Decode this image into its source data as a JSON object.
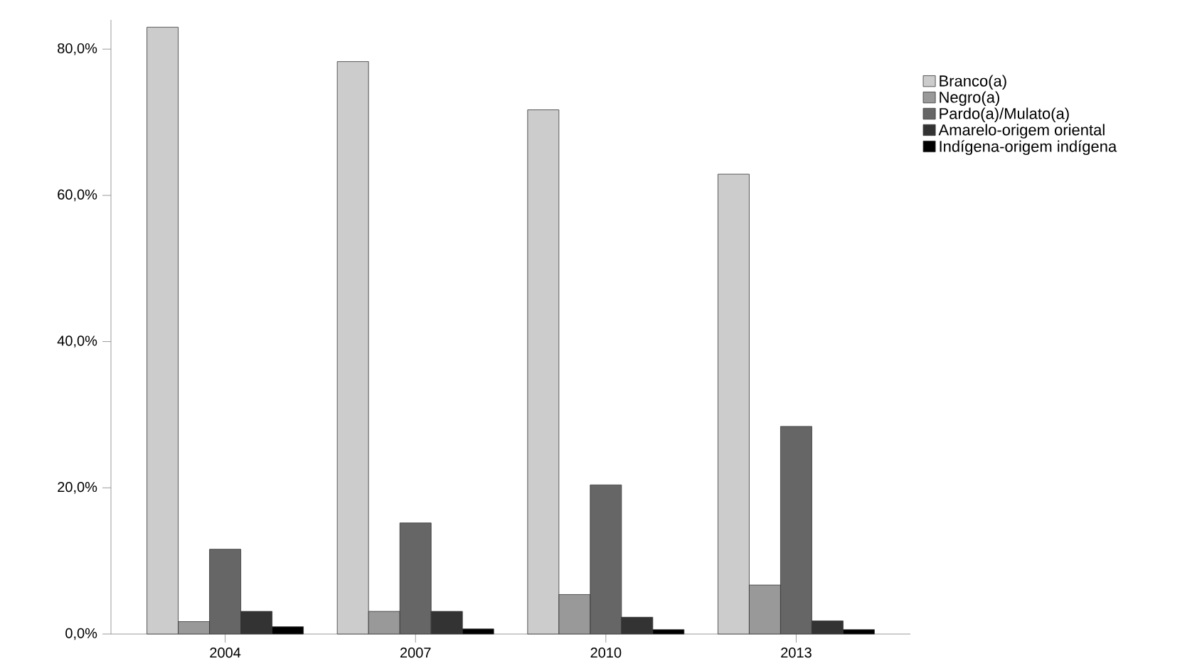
{
  "chart_data": {
    "type": "bar",
    "categories": [
      "2004",
      "2007",
      "2010",
      "2013"
    ],
    "series": [
      {
        "name": "Branco(a)",
        "color": "#cccccc",
        "values": [
          83.0,
          78.3,
          71.7,
          62.9
        ]
      },
      {
        "name": "Negro(a)",
        "color": "#999999",
        "values": [
          1.7,
          3.1,
          5.4,
          6.7
        ]
      },
      {
        "name": "Pardo(a)/Mulato(a)",
        "color": "#666666",
        "values": [
          11.6,
          15.2,
          20.4,
          28.4
        ]
      },
      {
        "name": "Amarelo-origem oriental",
        "color": "#333333",
        "values": [
          3.1,
          3.1,
          2.3,
          1.8
        ]
      },
      {
        "name": "Indígena-origem indígena",
        "color": "#000000",
        "values": [
          1.0,
          0.7,
          0.6,
          0.6
        ]
      }
    ],
    "ylim": [
      0,
      84
    ],
    "yticks": [
      {
        "value": 0,
        "label": "0,0%"
      },
      {
        "value": 20,
        "label": "20,0%"
      },
      {
        "value": 40,
        "label": "40,0%"
      },
      {
        "value": 60,
        "label": "60,0%"
      },
      {
        "value": 80,
        "label": "80,0%"
      }
    ],
    "legend": "right"
  }
}
